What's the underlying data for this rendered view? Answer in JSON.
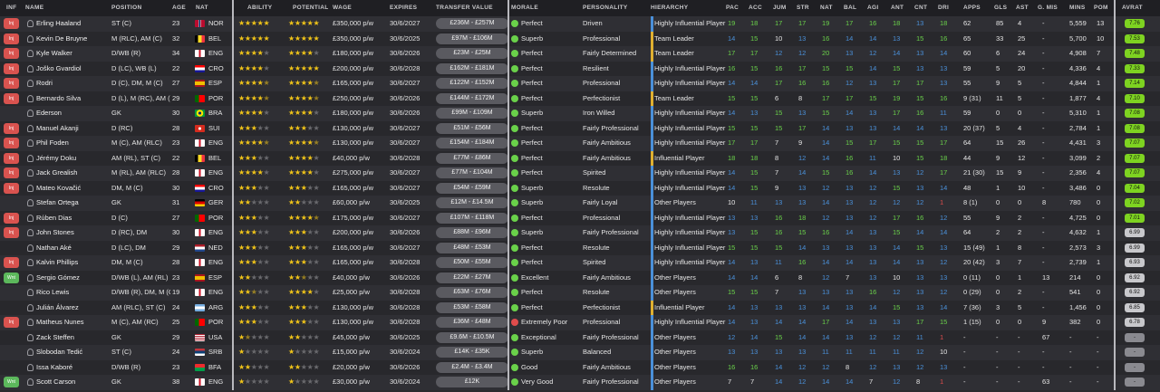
{
  "headers": {
    "inf": "INF",
    "name": "NAME",
    "position": "POSITION",
    "age": "AGE",
    "nat": "NAT",
    "ability": "ABILITY",
    "potential": "POTENTIAL",
    "wage": "WAGE",
    "expires": "EXPIRES",
    "transfer_value": "TRANSFER VALUE",
    "morale": "MORALE",
    "personality": "PERSONALITY",
    "hierarchy": "HIERARCHY",
    "pac": "PAC",
    "acc": "ACC",
    "jum": "JUM",
    "str": "STR",
    "nat2": "NAT",
    "bal": "BAL",
    "agi": "AGI",
    "ant": "ANT",
    "cnt": "CNT",
    "dri": "DRI",
    "apps": "APPS",
    "gls": "GLS",
    "ast": "AST",
    "gmis": "G. MIS",
    "mins": "MINS",
    "pom": "POM",
    "avrat": "AVRAT"
  },
  "colors": {
    "good": "#6ad14a",
    "avg": "#4a90d9",
    "star": "#f0c419",
    "star_empty": "#6a6a6e",
    "bar_gold": "#e0b030",
    "bar_blue": "#4a90d9",
    "bar_grey": "#8a8a90"
  },
  "players": [
    {
      "inf": "Inj",
      "name": "Erling Haaland",
      "position": "ST (C)",
      "age": "23",
      "nat": "NOR",
      "ability": 5,
      "potential": 5,
      "wage": "£350,000 p/w",
      "expires": "30/6/2027",
      "tv": "£236M - £257M",
      "morale": "Perfect",
      "personality": "Driven",
      "hierarchy": "Highly Influential Player",
      "pac": "19",
      "acc": "18",
      "jum": "17",
      "str": "17",
      "nat2": "19",
      "bal": "17",
      "agi": "16",
      "ant": "18",
      "cnt": "13",
      "dri": "18",
      "apps": "62",
      "gls": "85",
      "ast": "4",
      "gmis": "-",
      "mins": "5,559",
      "pom": "13",
      "avrat": "7.76"
    },
    {
      "inf": "Inj",
      "name": "Kevin De Bruyne",
      "position": "M (RLC), AM (C)",
      "age": "32",
      "nat": "BEL",
      "ability": 5,
      "potential": 5,
      "wage": "£350,000 p/w",
      "expires": "30/6/2025",
      "tv": "£97M - £106M",
      "morale": "Superb",
      "personality": "Professional",
      "hierarchy": "Team Leader",
      "pac": "14",
      "acc": "15",
      "jum": "10",
      "str": "13",
      "nat2": "16",
      "bal": "14",
      "agi": "14",
      "ant": "13",
      "cnt": "15",
      "dri": "16",
      "apps": "65",
      "gls": "33",
      "ast": "25",
      "gmis": "-",
      "mins": "5,700",
      "pom": "10",
      "avrat": "7.53"
    },
    {
      "inf": "Inj",
      "name": "Kyle Walker",
      "position": "D/WB (R)",
      "age": "34",
      "nat": "ENG",
      "ability": 4,
      "potential": 4,
      "wage": "£180,000 p/w",
      "expires": "30/6/2026",
      "tv": "£23M - £25M",
      "morale": "Perfect",
      "personality": "Fairly Determined",
      "hierarchy": "Team Leader",
      "pac": "17",
      "acc": "17",
      "jum": "12",
      "str": "12",
      "nat2": "20",
      "bal": "13",
      "agi": "12",
      "ant": "14",
      "cnt": "13",
      "dri": "14",
      "apps": "60",
      "gls": "6",
      "ast": "24",
      "gmis": "-",
      "mins": "4,908",
      "pom": "7",
      "avrat": "7.48"
    },
    {
      "inf": "Inj",
      "name": "Joško Gvardiol",
      "position": "D (LC), WB (L)",
      "age": "22",
      "nat": "CRO",
      "ability": 4,
      "potential": 5,
      "wage": "£200,000 p/w",
      "expires": "30/6/2028",
      "tv": "£162M - £181M",
      "morale": "Perfect",
      "personality": "Resilient",
      "hierarchy": "Highly Influential Player",
      "pac": "16",
      "acc": "15",
      "jum": "16",
      "str": "17",
      "nat2": "15",
      "bal": "15",
      "agi": "14",
      "ant": "15",
      "cnt": "13",
      "dri": "13",
      "apps": "59",
      "gls": "5",
      "ast": "20",
      "gmis": "-",
      "mins": "4,336",
      "pom": "4",
      "avrat": "7.33"
    },
    {
      "inf": "Inj",
      "name": "Rodri",
      "position": "D (C), DM, M (C)",
      "age": "27",
      "nat": "ESP",
      "ability": 4.5,
      "potential": 4.5,
      "wage": "£165,000 p/w",
      "expires": "30/6/2027",
      "tv": "£122M - £152M",
      "morale": "Perfect",
      "personality": "Professional",
      "hierarchy": "Highly Influential Player",
      "pac": "14",
      "acc": "14",
      "jum": "17",
      "nat_x": "",
      "str": "16",
      "nat2": "16",
      "bal": "12",
      "agi": "13",
      "ant": "17",
      "cnt": "17",
      "dri": "13",
      "apps": "55",
      "gls": "9",
      "ast": "5",
      "gmis": "-",
      "mins": "4,844",
      "pom": "1",
      "avrat": "7.14"
    },
    {
      "inf": "Inj",
      "name": "Bernardo Silva",
      "position": "D (L), M (RC), AM (RLC)",
      "age": "29",
      "nat": "POR",
      "ability": 4.5,
      "potential": 4.5,
      "wage": "£250,000 p/w",
      "expires": "30/6/2026",
      "tv": "£144M - £172M",
      "morale": "Perfect",
      "personality": "Perfectionist",
      "hierarchy": "Team Leader",
      "pac": "15",
      "acc": "15",
      "jum": "6",
      "str": "8",
      "nat2": "17",
      "bal": "17",
      "agi": "15",
      "ant": "19",
      "cnt": "15",
      "dri": "16",
      "apps": "9 (31)",
      "gls": "11",
      "ast": "5",
      "gmis": "-",
      "mins": "1,877",
      "pom": "4",
      "avrat": "7.10"
    },
    {
      "inf": "",
      "name": "Ederson",
      "position": "GK",
      "age": "30",
      "nat": "BRA",
      "ability": 4,
      "potential": 4,
      "wage": "£180,000 p/w",
      "expires": "30/6/2026",
      "tv": "£99M - £109M",
      "morale": "Superb",
      "personality": "Iron Willed",
      "hierarchy": "Highly Influential Player",
      "pac": "14",
      "acc": "13",
      "jum": "15",
      "str": "13",
      "nat2": "15",
      "bal": "14",
      "agi": "13",
      "ant": "17",
      "cnt": "16",
      "dri": "11",
      "apps": "59",
      "gls": "0",
      "ast": "0",
      "gmis": "-",
      "mins": "5,310",
      "pom": "1",
      "avrat": "7.08"
    },
    {
      "inf": "Inj",
      "name": "Manuel Akanji",
      "position": "D (RC)",
      "age": "28",
      "nat": "SUI",
      "ability": 3,
      "potential": 3,
      "wage": "£130,000 p/w",
      "expires": "30/6/2027",
      "tv": "£51M - £56M",
      "morale": "Perfect",
      "personality": "Fairly Professional",
      "hierarchy": "Highly Influential Player",
      "pac": "15",
      "acc": "15",
      "jum": "15",
      "str": "17",
      "nat2": "14",
      "bal": "13",
      "agi": "13",
      "ant": "14",
      "cnt": "14",
      "dri": "13",
      "apps": "20 (37)",
      "gls": "5",
      "ast": "4",
      "gmis": "-",
      "mins": "2,784",
      "pom": "1",
      "avrat": "7.08"
    },
    {
      "inf": "Inj",
      "name": "Phil Foden",
      "position": "M (C), AM (RLC)",
      "age": "23",
      "nat": "ENG",
      "ability": 4.5,
      "potential": 4.5,
      "wage": "£130,000 p/w",
      "expires": "30/6/2027",
      "tv": "£154M - £184M",
      "morale": "Perfect",
      "personality": "Fairly Ambitious",
      "hierarchy": "Highly Influential Player",
      "pac": "17",
      "acc": "17",
      "jum": "7",
      "str": "9",
      "nat2": "14",
      "bal": "15",
      "agi": "17",
      "ant": "15",
      "cnt": "15",
      "dri": "17",
      "apps": "64",
      "gls": "15",
      "ast": "26",
      "gmis": "-",
      "mins": "4,431",
      "pom": "3",
      "avrat": "7.07"
    },
    {
      "inf": "Inj",
      "name": "Jérémy Doku",
      "position": "AM (RL), ST (C)",
      "age": "22",
      "nat": "BEL",
      "ability": 3,
      "potential": 4,
      "wage": "£40,000 p/w",
      "expires": "30/6/2028",
      "tv": "£77M - £86M",
      "morale": "Perfect",
      "personality": "Fairly Ambitious",
      "hierarchy": "Influential Player",
      "pac": "18",
      "acc": "18",
      "jum": "8",
      "str": "12",
      "nat2": "14",
      "bal": "16",
      "agi": "11",
      "ant": "10",
      "cnt": "15",
      "dri": "18",
      "apps": "44",
      "gls": "9",
      "ast": "12",
      "gmis": "-",
      "mins": "3,099",
      "pom": "2",
      "avrat": "7.07"
    },
    {
      "inf": "Inj",
      "name": "Jack Grealish",
      "position": "M (RL), AM (RLC)",
      "age": "28",
      "nat": "ENG",
      "ability": 4,
      "potential": 4,
      "wage": "£275,000 p/w",
      "expires": "30/6/2027",
      "tv": "£77M - £104M",
      "morale": "Perfect",
      "personality": "Spirited",
      "hierarchy": "Highly Influential Player",
      "pac": "14",
      "acc": "15",
      "jum": "7",
      "str": "14",
      "nat2": "15",
      "bal": "16",
      "agi": "14",
      "ant": "13",
      "cnt": "12",
      "dri": "17",
      "apps": "21 (30)",
      "gls": "15",
      "ast": "9",
      "gmis": "-",
      "mins": "2,356",
      "pom": "4",
      "avrat": "7.07"
    },
    {
      "inf": "Inj",
      "name": "Mateo Kovačić",
      "position": "DM, M (C)",
      "age": "30",
      "nat": "CRO",
      "ability": 3,
      "potential": 3,
      "wage": "£165,000 p/w",
      "expires": "30/6/2027",
      "tv": "£54M - £59M",
      "morale": "Superb",
      "personality": "Resolute",
      "hierarchy": "Highly Influential Player",
      "pac": "14",
      "acc": "15",
      "jum": "9",
      "str": "13",
      "nat2": "12",
      "bal": "13",
      "agi": "12",
      "ant": "15",
      "cnt": "13",
      "dri": "14",
      "apps": "48",
      "gls": "1",
      "ast": "10",
      "gmis": "-",
      "mins": "3,486",
      "pom": "0",
      "avrat": "7.04"
    },
    {
      "inf": "",
      "name": "Stefan Ortega",
      "position": "GK",
      "age": "31",
      "nat": "GER",
      "ability": 2,
      "potential": 2,
      "wage": "£60,000 p/w",
      "expires": "30/6/2025",
      "tv": "£12M - £14.5M",
      "morale": "Superb",
      "personality": "Fairly Loyal",
      "hierarchy": "Other Players",
      "pac": "10",
      "acc": "11",
      "jum": "13",
      "str": "13",
      "nat2": "14",
      "bal": "13",
      "agi": "12",
      "ant": "12",
      "cnt": "12",
      "dri": "1",
      "apps": "8 (1)",
      "gls": "0",
      "ast": "0",
      "gmis": "8",
      "mins": "780",
      "pom": "0",
      "avrat": "7.02"
    },
    {
      "inf": "Inj",
      "name": "Rúben Dias",
      "position": "D (C)",
      "age": "27",
      "nat": "POR",
      "ability": 3,
      "potential": 4.5,
      "wage": "£175,000 p/w",
      "expires": "30/6/2027",
      "tv": "£107M - £118M",
      "morale": "Perfect",
      "personality": "Professional",
      "hierarchy": "Highly Influential Player",
      "pac": "13",
      "acc": "13",
      "jum": "16",
      "str": "18",
      "nat2": "12",
      "bal": "13",
      "agi": "12",
      "ant": "17",
      "cnt": "16",
      "dri": "12",
      "apps": "55",
      "gls": "9",
      "ast": "2",
      "gmis": "-",
      "mins": "4,725",
      "pom": "0",
      "avrat": "7.01"
    },
    {
      "inf": "Inj",
      "name": "John Stones",
      "position": "D (RC), DM",
      "age": "30",
      "nat": "ENG",
      "ability": 3,
      "potential": 3,
      "wage": "£200,000 p/w",
      "expires": "30/6/2026",
      "tv": "£88M - £96M",
      "morale": "Superb",
      "personality": "Fairly Professional",
      "hierarchy": "Highly Influential Player",
      "pac": "13",
      "acc": "15",
      "jum": "16",
      "str": "15",
      "nat2": "16",
      "bal": "14",
      "agi": "13",
      "ant": "15",
      "cnt": "14",
      "dri": "14",
      "apps": "64",
      "gls": "2",
      "ast": "2",
      "gmis": "-",
      "mins": "4,632",
      "pom": "1",
      "avrat": "6.99"
    },
    {
      "inf": "",
      "name": "Nathan Aké",
      "position": "D (LC), DM",
      "age": "29",
      "nat": "NED",
      "ability": 3,
      "potential": 3,
      "wage": "£165,000 p/w",
      "expires": "30/6/2027",
      "tv": "£48M - £53M",
      "morale": "Perfect",
      "personality": "Resolute",
      "hierarchy": "Highly Influential Player",
      "pac": "15",
      "acc": "15",
      "jum": "15",
      "str": "14",
      "nat2": "13",
      "bal": "13",
      "agi": "13",
      "ant": "14",
      "cnt": "15",
      "dri": "13",
      "apps": "15 (49)",
      "gls": "1",
      "ast": "8",
      "gmis": "-",
      "mins": "2,573",
      "pom": "3",
      "avrat": "6.99"
    },
    {
      "inf": "Inj",
      "name": "Kalvin Phillips",
      "position": "DM, M (C)",
      "age": "28",
      "nat": "ENG",
      "ability": 3,
      "potential": 3,
      "wage": "£165,000 p/w",
      "expires": "30/6/2028",
      "tv": "£50M - £55M",
      "morale": "Perfect",
      "personality": "Spirited",
      "hierarchy": "Highly Influential Player",
      "pac": "14",
      "acc": "13",
      "jum": "11",
      "str": "16",
      "nat2": "14",
      "bal": "14",
      "agi": "13",
      "ant": "14",
      "cnt": "13",
      "dri": "12",
      "apps": "20 (42)",
      "gls": "3",
      "ast": "7",
      "gmis": "-",
      "mins": "2,739",
      "pom": "1",
      "avrat": "6.93"
    },
    {
      "inf": "Wnt",
      "name": "Sergio Gómez",
      "position": "D/WB (L), AM (RL)",
      "age": "23",
      "nat": "ESP",
      "ability": 2,
      "potential": 2.5,
      "wage": "£40,000 p/w",
      "expires": "30/6/2026",
      "tv": "£22M - £27M",
      "morale": "Excellent",
      "personality": "Fairly Ambitious",
      "hierarchy": "Other Players",
      "pac": "14",
      "acc": "14",
      "jum": "6",
      "str": "8",
      "nat2": "12",
      "bal": "7",
      "agi": "13",
      "ant": "10",
      "cnt": "13",
      "dri": "13",
      "apps": "0 (11)",
      "gls": "0",
      "ast": "1",
      "gmis": "13",
      "mins": "214",
      "pom": "0",
      "avrat": "6.92"
    },
    {
      "inf": "",
      "name": "Rico Lewis",
      "position": "D/WB (R), DM, M (C)",
      "age": "19",
      "nat": "ENG",
      "ability": 2.5,
      "potential": 4,
      "wage": "£25,000 p/w",
      "expires": "30/6/2028",
      "tv": "£63M - £76M",
      "morale": "Perfect",
      "personality": "Resolute",
      "hierarchy": "Other Players",
      "pac": "15",
      "acc": "15",
      "jum": "7",
      "str": "13",
      "nat2": "13",
      "bal": "13",
      "agi": "16",
      "ant": "12",
      "cnt": "13",
      "dri": "12",
      "apps": "0 (29)",
      "gls": "0",
      "ast": "2",
      "gmis": "-",
      "mins": "541",
      "pom": "0",
      "avrat": "6.92"
    },
    {
      "inf": "",
      "name": "Julián Álvarez",
      "position": "AM (RLC), ST (C)",
      "age": "24",
      "nat": "ARG",
      "ability": 3,
      "potential": 3,
      "wage": "£130,000 p/w",
      "expires": "30/6/2028",
      "tv": "£53M - £58M",
      "morale": "Perfect",
      "personality": "Perfectionist",
      "hierarchy": "Influential Player",
      "pac": "14",
      "acc": "13",
      "jum": "13",
      "str": "13",
      "nat2": "14",
      "bal": "13",
      "agi": "14",
      "ant": "15",
      "cnt": "13",
      "dri": "14",
      "apps": "7 (36)",
      "gls": "3",
      "ast": "5",
      "gmis": "-",
      "mins": "1,456",
      "pom": "0",
      "avrat": "6.85"
    },
    {
      "inf": "Inj",
      "name": "Matheus Nunes",
      "position": "M (C), AM (RC)",
      "age": "25",
      "nat": "POR",
      "ability": 3,
      "potential": 3,
      "wage": "£130,000 p/w",
      "expires": "30/6/2028",
      "tv": "£36M - £48M",
      "morale": "Extremely Poor",
      "personality": "Professional",
      "hierarchy": "Highly Influential Player",
      "pac": "14",
      "acc": "13",
      "jum": "14",
      "str": "14",
      "nat2": "17",
      "bal": "14",
      "agi": "13",
      "ant": "13",
      "cnt": "17",
      "dri": "15",
      "apps": "1 (15)",
      "gls": "0",
      "ast": "0",
      "gmis": "9",
      "mins": "382",
      "pom": "0",
      "avrat": "6.78"
    },
    {
      "inf": "",
      "name": "Zack Steffen",
      "position": "GK",
      "age": "29",
      "nat": "USA",
      "ability": 1.5,
      "potential": 2,
      "wage": "£45,000 p/w",
      "expires": "30/6/2025",
      "tv": "£9.6M - £10.5M",
      "morale": "Exceptional",
      "personality": "Fairly Professional",
      "hierarchy": "Other Players",
      "pac": "12",
      "acc": "14",
      "jum": "15",
      "str": "14",
      "nat2": "14",
      "bal": "13",
      "agi": "12",
      "ant": "12",
      "cnt": "11",
      "dri": "1",
      "apps": "-",
      "gls": "-",
      "ast": "-",
      "gmis": "67",
      "mins": "-",
      "pom": "-",
      "avrat": "-"
    },
    {
      "inf": "",
      "name": "Slobodan Tedić",
      "position": "ST (C)",
      "age": "24",
      "nat": "SRB",
      "ability": 1,
      "potential": 1,
      "wage": "£15,000 p/w",
      "expires": "30/6/2024",
      "tv": "£14K - £35K",
      "morale": "Superb",
      "personality": "Balanced",
      "hierarchy": "Other Players",
      "pac": "13",
      "acc": "13",
      "jum": "13",
      "str": "13",
      "nat2": "11",
      "bal": "11",
      "agi": "11",
      "ant": "11",
      "cnt": "12",
      "dri": "10",
      "apps": "-",
      "gls": "-",
      "ast": "-",
      "gmis": "-",
      "mins": "-",
      "pom": "-",
      "avrat": "-"
    },
    {
      "inf": "",
      "name": "Issa Kaboré",
      "position": "D/WB (R)",
      "age": "23",
      "nat": "BFA",
      "ability": 2,
      "potential": 2,
      "wage": "£20,000 p/w",
      "expires": "30/6/2026",
      "tv": "£2.4M - £3.4M",
      "morale": "Good",
      "personality": "Fairly Ambitious",
      "hierarchy": "Other Players",
      "pac": "16",
      "acc": "16",
      "jum": "14",
      "str": "12",
      "nat2": "12",
      "bal": "8",
      "agi": "12",
      "ant": "13",
      "cnt": "12",
      "dri": "13",
      "apps": "-",
      "gls": "-",
      "ast": "-",
      "gmis": "-",
      "mins": "-",
      "pom": "-",
      "avrat": "-"
    },
    {
      "inf": "Wnt",
      "name": "Scott Carson",
      "position": "GK",
      "age": "38",
      "nat": "ENG",
      "ability": 1,
      "potential": 1,
      "wage": "£30,000 p/w",
      "expires": "30/6/2024",
      "tv": "£12K",
      "morale": "Very Good",
      "personality": "Fairly Professional",
      "hierarchy": "Other Players",
      "pac": "7",
      "acc": "7",
      "jum": "14",
      "str": "12",
      "nat2": "14",
      "bal": "14",
      "agi": "7",
      "ant": "12",
      "cnt": "8",
      "dri": "1",
      "apps": "-",
      "gls": "-",
      "ast": "-",
      "gmis": "63",
      "mins": "-",
      "pom": "-",
      "avrat": "-"
    }
  ]
}
